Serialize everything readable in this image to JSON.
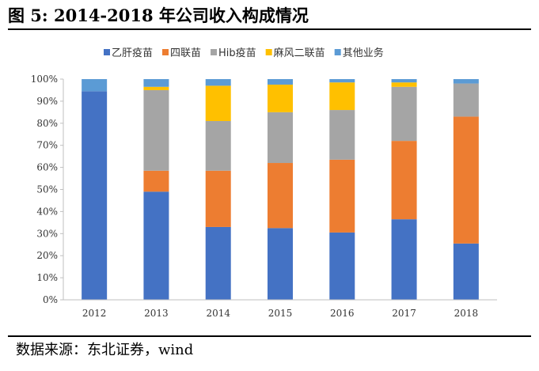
{
  "title": "图  5:  2014-2018 年公司收入构成情况",
  "source": "数据来源：东北证券，wind",
  "chart_data": {
    "type": "bar",
    "stacked": true,
    "categories": [
      "2012",
      "2013",
      "2014",
      "2015",
      "2016",
      "2017",
      "2018"
    ],
    "ylim": [
      0,
      100
    ],
    "yticks": [
      "0%",
      "10%",
      "20%",
      "30%",
      "40%",
      "50%",
      "60%",
      "70%",
      "80%",
      "90%",
      "100%"
    ],
    "grid": false,
    "legend_position": "top",
    "series": [
      {
        "name": "乙肝疫苗",
        "color": "#4472C4",
        "values": [
          94.5,
          49,
          33,
          32.5,
          30.5,
          36.5,
          25.5
        ]
      },
      {
        "name": "四联苗",
        "color": "#ED7D31",
        "values": [
          0,
          9.5,
          25.5,
          29.5,
          33,
          35.5,
          57.5
        ]
      },
      {
        "name": "Hib疫苗",
        "color": "#A5A5A5",
        "values": [
          0,
          36.5,
          22.5,
          23,
          22.5,
          24.5,
          15
        ]
      },
      {
        "name": "麻风二联苗",
        "color": "#FFC000",
        "values": [
          0,
          1.5,
          16,
          12.5,
          12.5,
          2,
          0
        ]
      },
      {
        "name": "其他业务",
        "color": "#5B9BD5",
        "values": [
          5.5,
          3.5,
          3,
          2.5,
          1.5,
          1.5,
          2
        ]
      }
    ]
  }
}
